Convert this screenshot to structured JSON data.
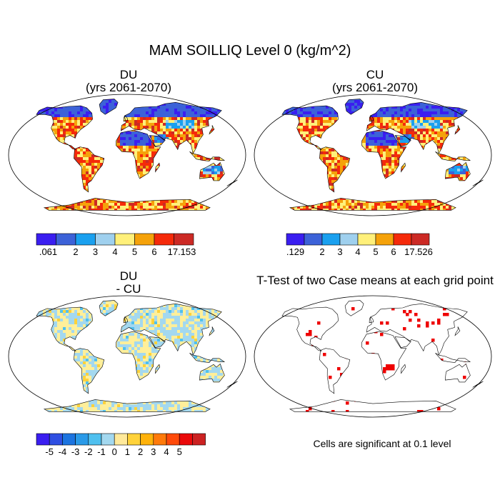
{
  "title": "MAM SOILLIQ Level 0 (kg/m^2)",
  "panels": [
    {
      "id": "du",
      "line1": "DU",
      "line2": "(yrs 2061-2070)"
    },
    {
      "id": "cu",
      "line1": "CU",
      "line2": "(yrs 2061-2070)"
    },
    {
      "id": "diff",
      "line1": "DU",
      "line2": "- CU"
    },
    {
      "id": "ttest",
      "line1": "T-Test of two Case means at each grid point",
      "line2": ""
    }
  ],
  "colorbars": {
    "du": {
      "colors": [
        "#3a1ef0",
        "#3c62d8",
        "#1aa0ef",
        "#9fd0ee",
        "#fff07a",
        "#f5a20a",
        "#f52a0a",
        "#cc2a25"
      ],
      "labels": [
        ".061",
        "2",
        "3",
        "4",
        "5",
        "6",
        "17.153"
      ]
    },
    "cu": {
      "colors": [
        "#3a1ef0",
        "#3c62d8",
        "#1aa0ef",
        "#9fd0ee",
        "#fff07a",
        "#f5a20a",
        "#f52a0a",
        "#cc2a25"
      ],
      "labels": [
        ".129",
        "2",
        "3",
        "4",
        "5",
        "6",
        "17.526"
      ]
    },
    "diff": {
      "colors": [
        "#3a1ef0",
        "#2f4fe2",
        "#1c74e0",
        "#2a9ae8",
        "#4fc0ef",
        "#a3d8ef",
        "#ffe99a",
        "#ffd23a",
        "#ffb20a",
        "#ff7a0a",
        "#ff4a0a",
        "#ea0a0a",
        "#cc2222"
      ],
      "labels": [
        "-5",
        "-4",
        "-3",
        "-2",
        "-1",
        "0",
        "1",
        "2",
        "3",
        "4",
        "5"
      ]
    }
  },
  "significance_note": "Cells are significant at 0.1 level",
  "colors": {
    "signif": "#ee0000",
    "ocean": "#ffffff",
    "coast": "#000000"
  }
}
